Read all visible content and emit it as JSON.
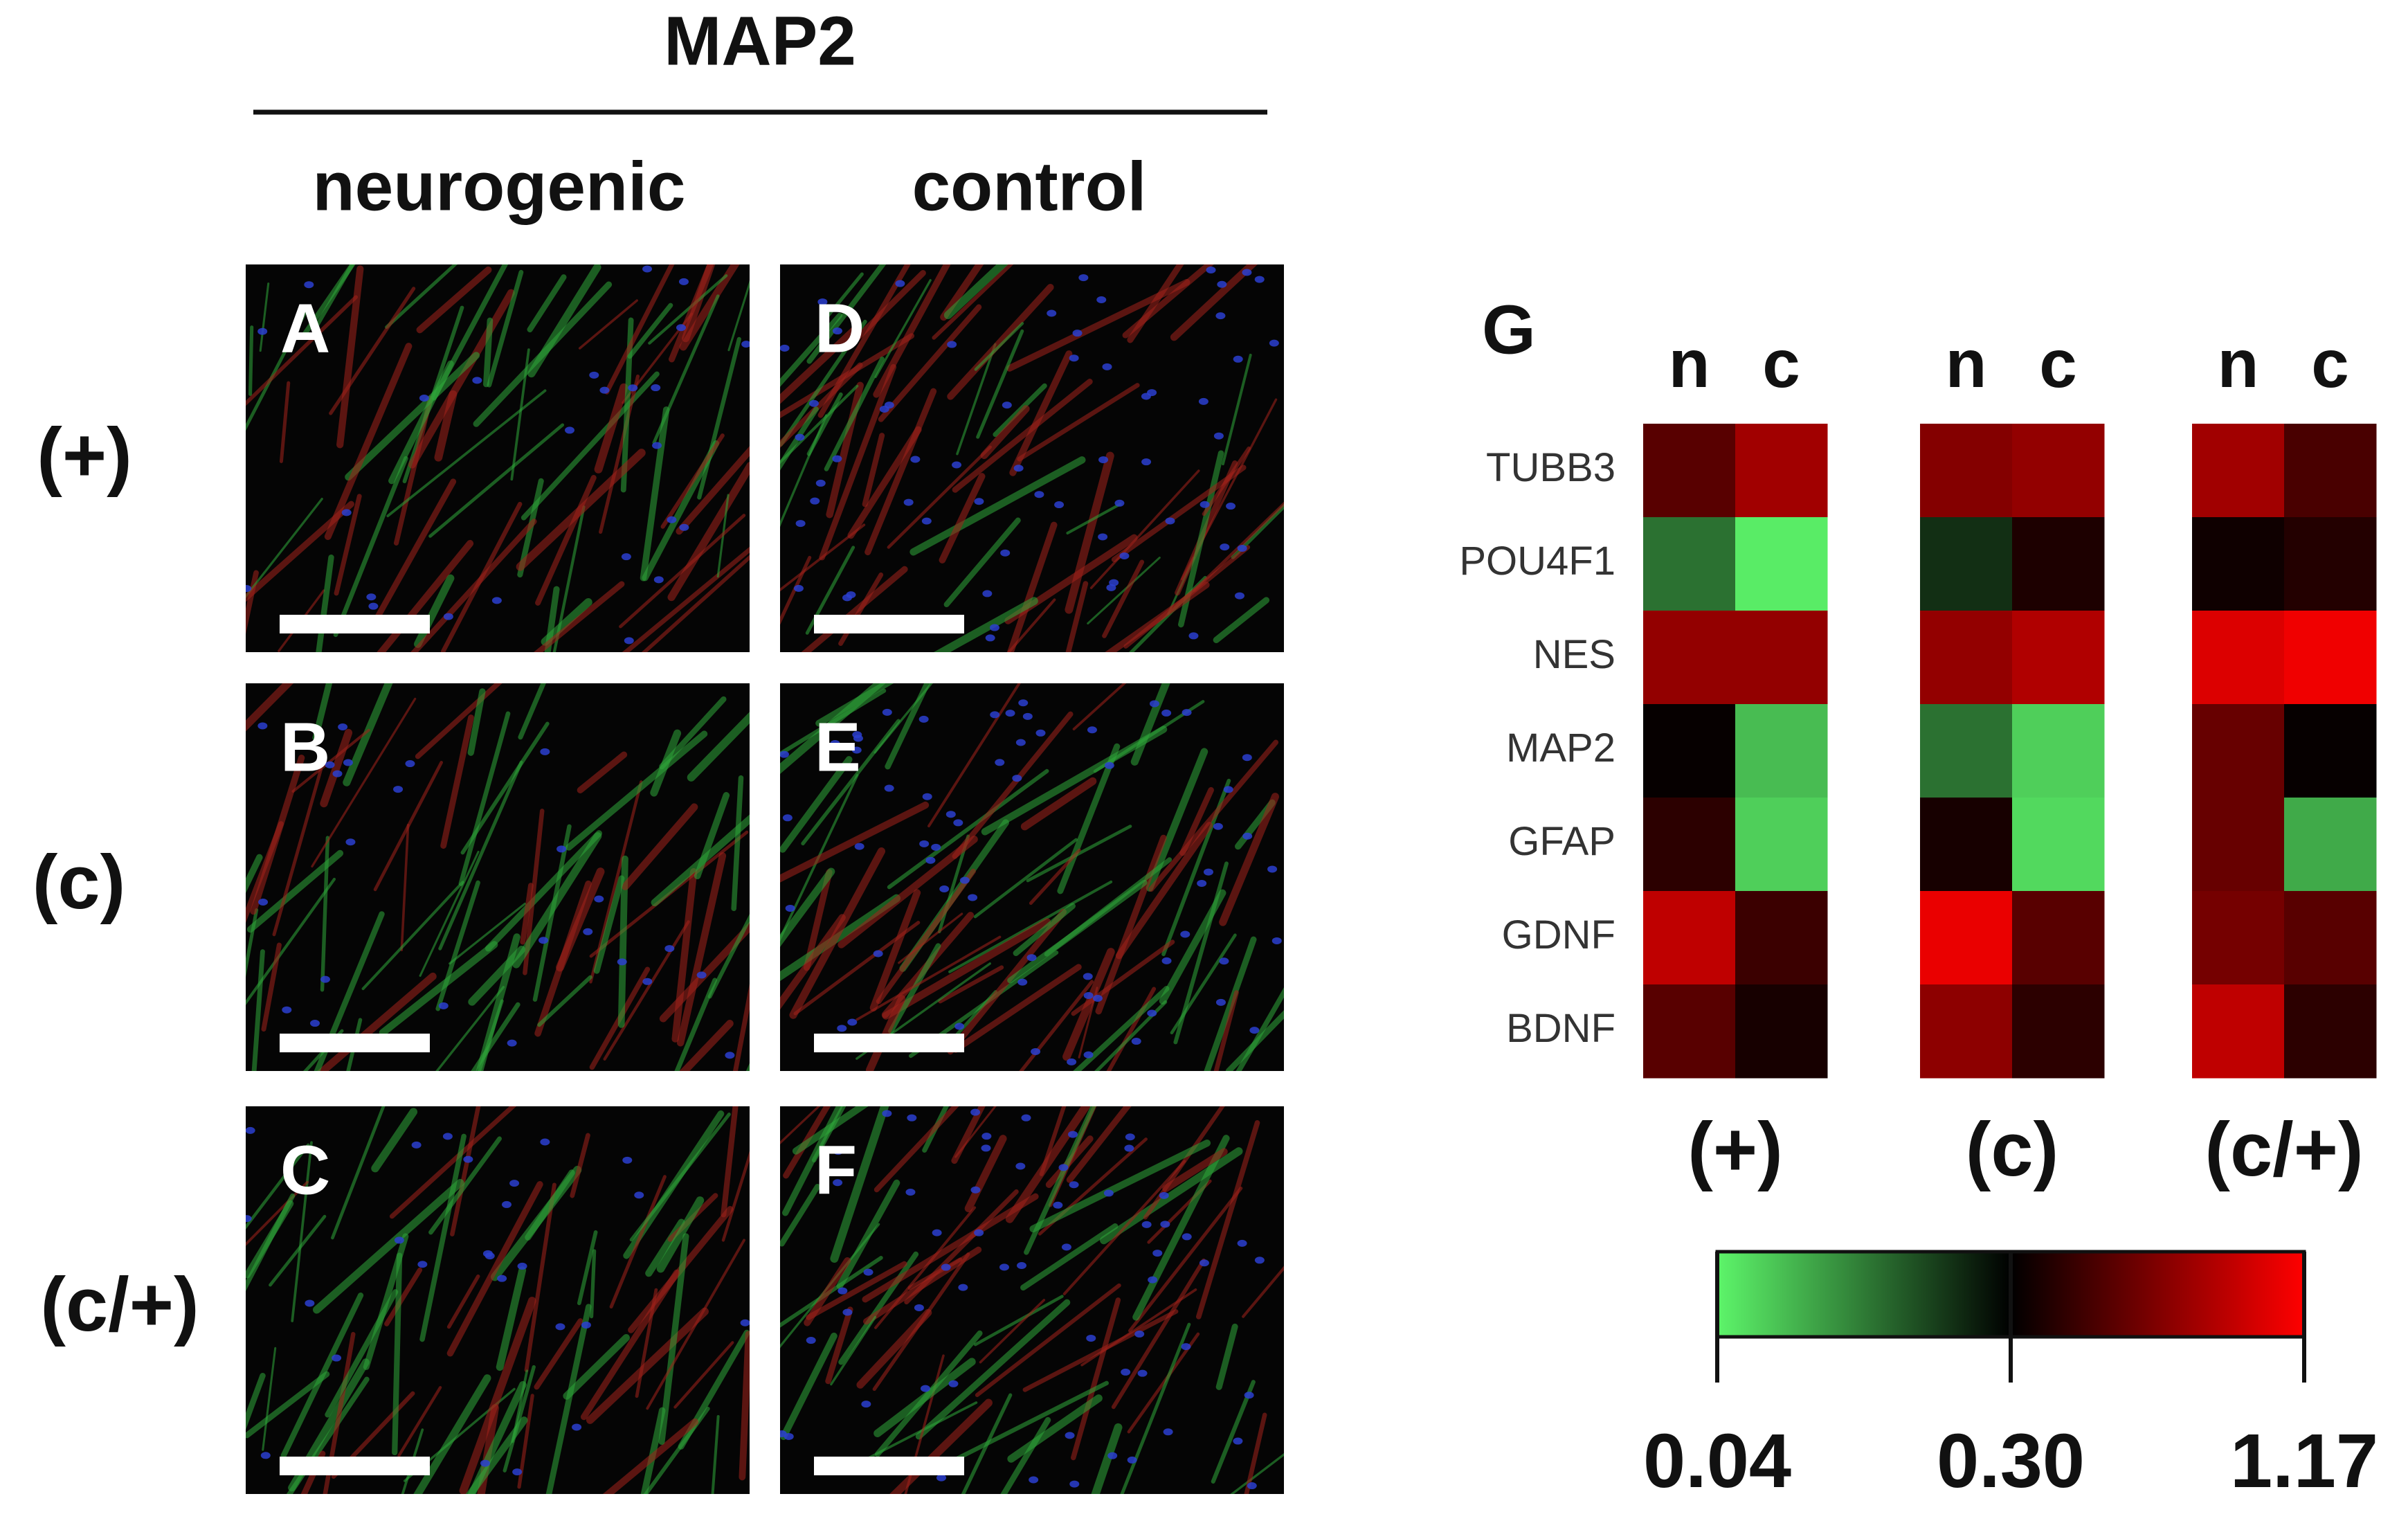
{
  "figure": {
    "title": "MAP2",
    "columns": [
      "neurogenic",
      "control"
    ],
    "rows": [
      "(+)",
      "(c)",
      "(c/+)"
    ],
    "panels": [
      [
        "A",
        "D"
      ],
      [
        "B",
        "E"
      ],
      [
        "C",
        "F"
      ]
    ]
  },
  "chart_data": {
    "type": "heatmap",
    "panel_label": "G",
    "categories": [
      "TUBB3",
      "POU4F1",
      "NES",
      "MAP2",
      "GFAP",
      "GDNF",
      "BDNF"
    ],
    "groups": [
      {
        "name": "(+)",
        "series": [
          {
            "name": "n",
            "values": [
              0.6,
              0.18,
              0.8,
              0.32,
              0.45,
              0.95,
              0.6
            ]
          },
          {
            "name": "c",
            "values": [
              0.85,
              0.05,
              0.8,
              0.1,
              0.08,
              0.5,
              0.38
            ]
          }
        ]
      },
      {
        "name": "(c)",
        "series": [
          {
            "name": "n",
            "values": [
              0.75,
              0.25,
              0.8,
              0.18,
              0.38,
              1.1,
              0.78
            ]
          },
          {
            "name": "c",
            "values": [
              0.8,
              0.4,
              0.9,
              0.08,
              0.07,
              0.6,
              0.45
            ]
          }
        ]
      },
      {
        "name": "(c/+)",
        "series": [
          {
            "name": "n",
            "values": [
              0.85,
              0.35,
              1.05,
              0.65,
              0.65,
              0.7,
              0.95
            ]
          },
          {
            "name": "c",
            "values": [
              0.55,
              0.42,
              1.12,
              0.32,
              0.12,
              0.6,
              0.45
            ]
          }
        ]
      }
    ],
    "colorbar": {
      "colors": [
        "#5df56a",
        "#000000",
        "#ff0000"
      ],
      "ticks": [
        {
          "value": 0.04,
          "label": "0.04"
        },
        {
          "value": 0.3,
          "label": "0.30"
        },
        {
          "value": 1.17,
          "label": "1.17"
        }
      ]
    }
  }
}
